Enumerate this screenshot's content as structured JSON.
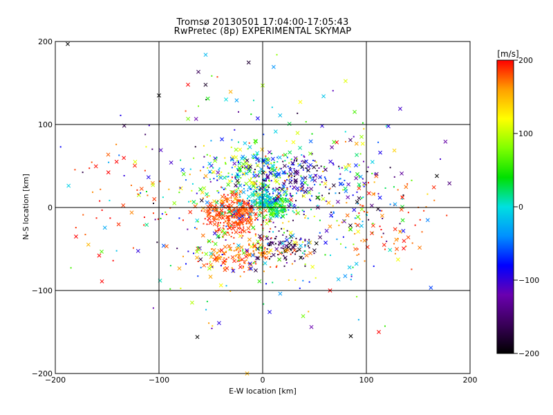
{
  "chart_data": {
    "type": "scatter",
    "title": "Tromsø 20130501 17:04:00-17:05:43",
    "subtitle": "RwPretec (8p) EXPERIMENTAL SKYMAP",
    "xlabel": "E-W location [km]",
    "ylabel": "N-S location [km]",
    "xlim": [
      -200,
      200
    ],
    "ylim": [
      -200,
      200
    ],
    "xticks": [
      "−200",
      "−100",
      "0",
      "100",
      "200"
    ],
    "yticks": [
      "−200",
      "−100",
      "0",
      "100",
      "200"
    ],
    "grid": true,
    "colorbar": {
      "label": "[m/s]",
      "range": [
        -200,
        200
      ],
      "ticks": [
        "200",
        "100",
        "0",
        "−100",
        "−200"
      ],
      "colormap": [
        "#000000",
        "#3a005a",
        "#6a00b0",
        "#0000ff",
        "#0090ff",
        "#00e0e0",
        "#00e000",
        "#80ff00",
        "#ffff00",
        "#ffa000",
        "#ff0000"
      ]
    },
    "markers": "mixed: small dots and x-crosses",
    "seed": 20130501,
    "clusters": [
      {
        "x": -28,
        "y": -8,
        "sx": 14,
        "sy": 12,
        "n": 320,
        "v": 185,
        "dv": 15
      },
      {
        "x": 12,
        "y": 2,
        "sx": 9,
        "sy": 8,
        "n": 170,
        "v": 40,
        "dv": 40
      },
      {
        "x": 0,
        "y": 12,
        "sx": 7,
        "sy": 6,
        "n": 90,
        "v": -10,
        "dv": 25
      },
      {
        "x": -10,
        "y": 45,
        "sx": 26,
        "sy": 16,
        "n": 190,
        "v": 20,
        "dv": 120
      },
      {
        "x": 35,
        "y": 32,
        "sx": 26,
        "sy": 15,
        "n": 170,
        "v": -120,
        "dv": 80
      },
      {
        "x": 20,
        "y": -48,
        "sx": 14,
        "sy": 10,
        "n": 90,
        "v": -170,
        "dv": 40
      },
      {
        "x": -18,
        "y": -58,
        "sx": 22,
        "sy": 10,
        "n": 130,
        "v": 175,
        "dv": 25
      },
      {
        "x": 0,
        "y": -20,
        "sx": 55,
        "sy": 45,
        "n": 230,
        "v": 40,
        "dv": 170
      },
      {
        "x": 0,
        "y": 20,
        "sx": 80,
        "sy": 70,
        "n": 260,
        "v": 0,
        "dv": 190
      },
      {
        "x": 120,
        "y": -20,
        "sx": 22,
        "sy": 25,
        "n": 60,
        "v": 185,
        "dv": 20
      },
      {
        "x": -140,
        "y": 15,
        "sx": 25,
        "sy": 35,
        "n": 40,
        "v": 185,
        "dv": 20
      },
      {
        "x": 95,
        "y": 25,
        "sx": 25,
        "sy": 30,
        "n": 70,
        "v": -20,
        "dv": 180
      }
    ],
    "outliers": [
      {
        "x": -188,
        "y": 197,
        "v": -200
      },
      {
        "x": -55,
        "y": 184,
        "v": -20
      },
      {
        "x": -72,
        "y": 148,
        "v": 200
      },
      {
        "x": 0,
        "y": 147,
        "v": 90
      },
      {
        "x": -100,
        "y": 135,
        "v": -200
      },
      {
        "x": -63,
        "y": -156,
        "v": -200
      },
      {
        "x": 47,
        "y": -144,
        "v": -120
      },
      {
        "x": 85,
        "y": -155,
        "v": -200
      },
      {
        "x": 112,
        "y": -150,
        "v": 200
      },
      {
        "x": -155,
        "y": -89,
        "v": 200
      },
      {
        "x": -180,
        "y": -35,
        "v": 200
      },
      {
        "x": -123,
        "y": 55,
        "v": 110
      },
      {
        "x": 168,
        "y": 38,
        "v": -200
      },
      {
        "x": -15,
        "y": -200,
        "v": 150
      },
      {
        "x": 65,
        "y": -100,
        "v": 200
      }
    ]
  }
}
